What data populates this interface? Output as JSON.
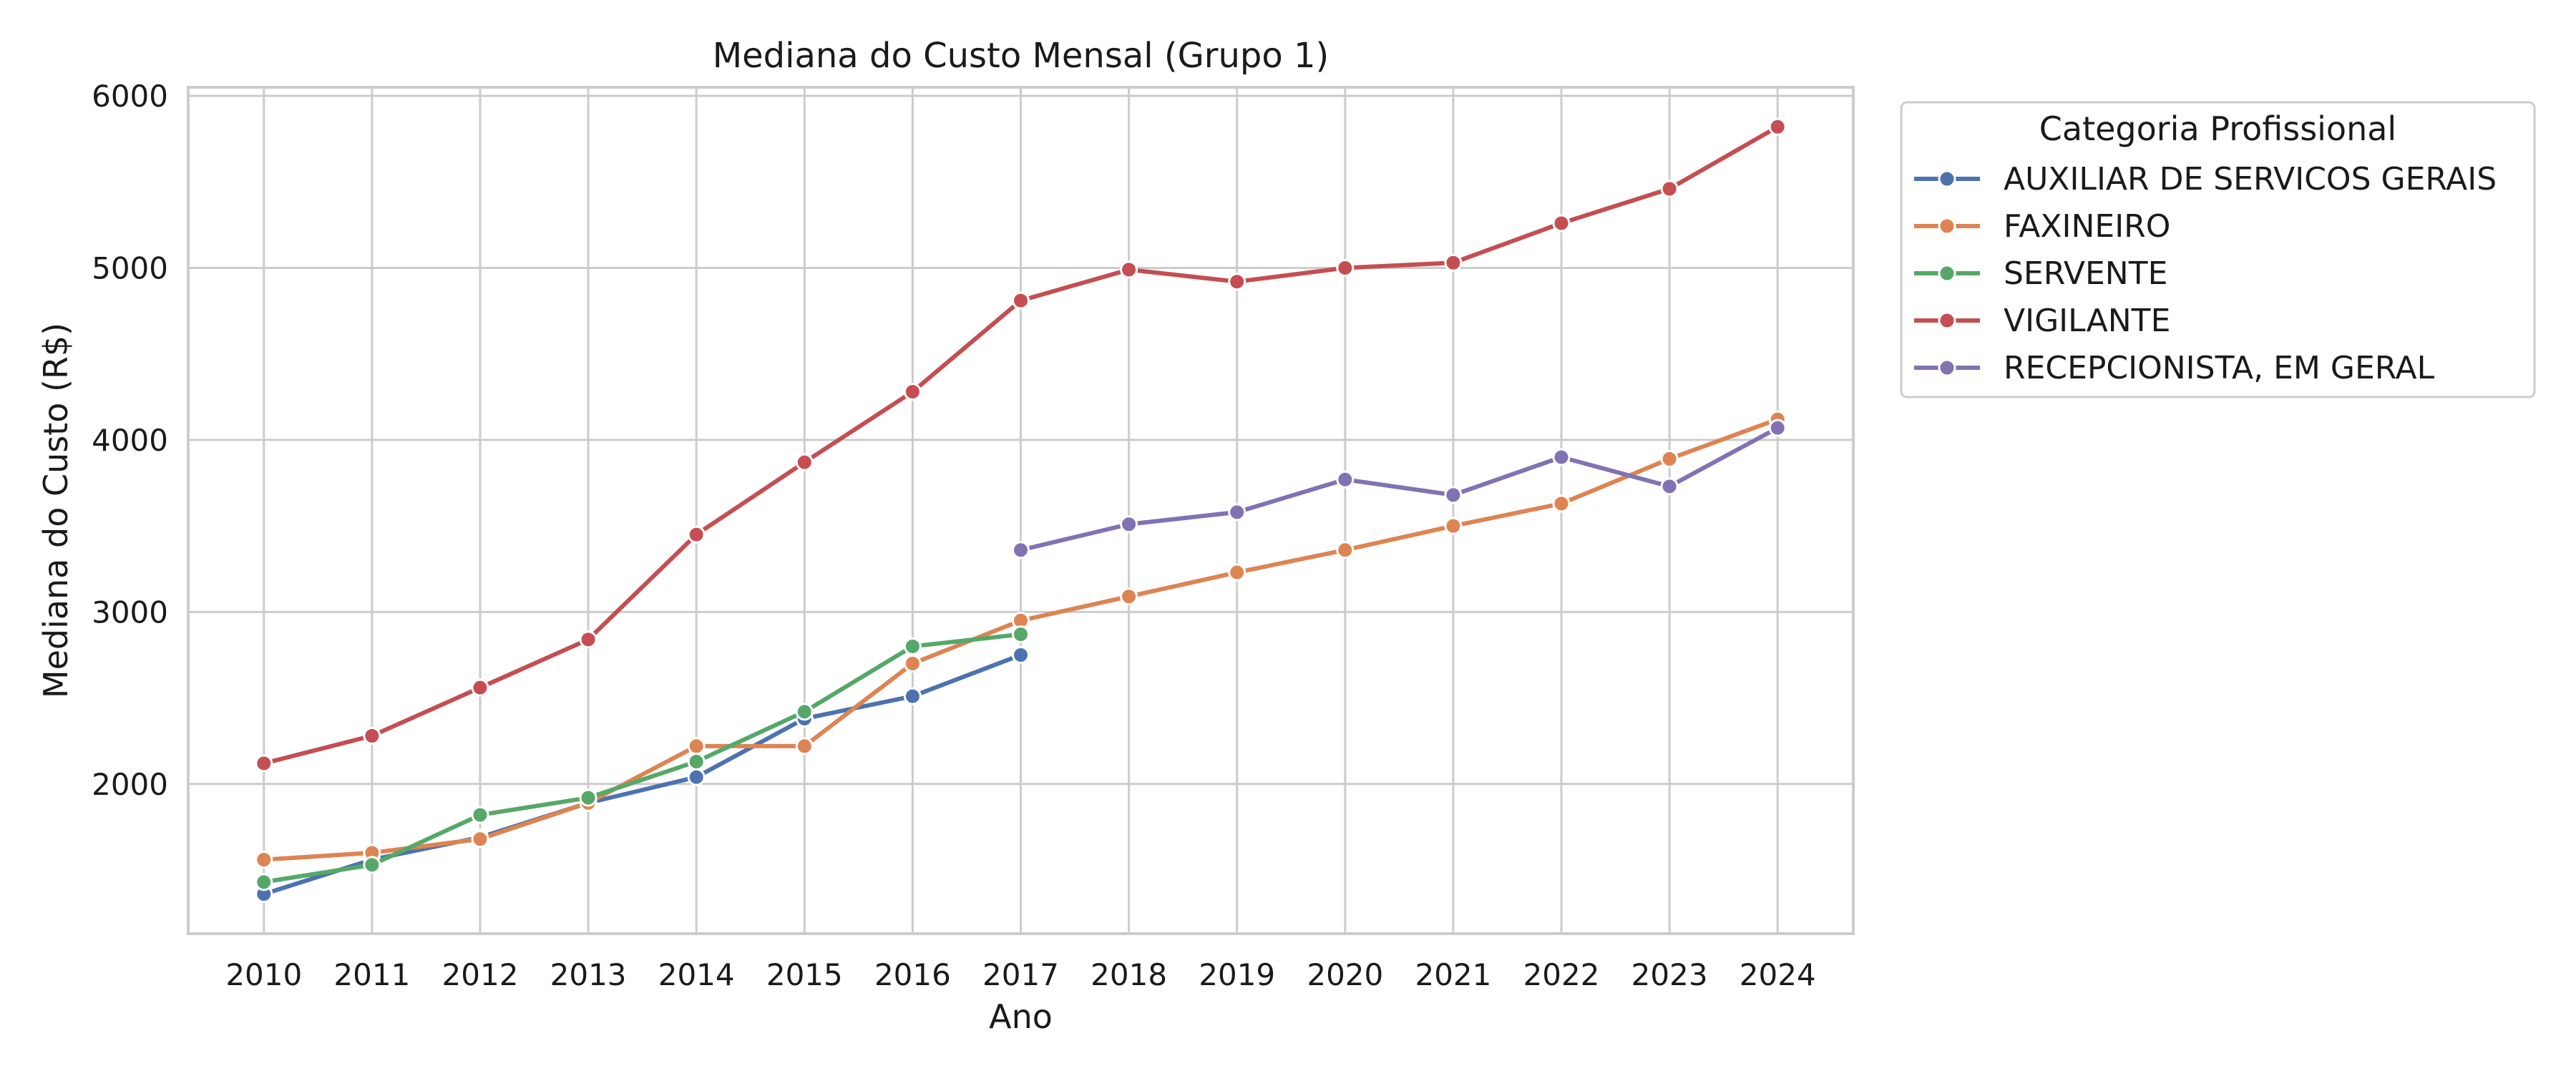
{
  "chart_data": {
    "type": "line",
    "title": "Mediana do Custo Mensal (Grupo 1)",
    "xlabel": "Ano",
    "ylabel": "Mediana do Custo (R$)",
    "x": [
      2010,
      2011,
      2012,
      2013,
      2014,
      2015,
      2016,
      2017,
      2018,
      2019,
      2020,
      2021,
      2022,
      2023,
      2024
    ],
    "xlim": [
      2009.3,
      2024.7
    ],
    "ylim": [
      1130,
      6050
    ],
    "y_ticks": [
      2000,
      3000,
      4000,
      5000,
      6000
    ],
    "grid": true,
    "legend": {
      "title": "Categoria Profissional",
      "placement": "outside-right"
    },
    "series": [
      {
        "name": "AUXILIAR DE SERVICOS GERAIS",
        "color": "#4c72b0",
        "values": [
          1360,
          1560,
          1690,
          1890,
          2040,
          2380,
          2510,
          2750,
          null,
          null,
          null,
          null,
          null,
          null,
          null
        ]
      },
      {
        "name": "FAXINEIRO",
        "color": "#dd8452",
        "values": [
          1560,
          1600,
          1680,
          1890,
          2220,
          2220,
          2700,
          2950,
          3090,
          3230,
          3360,
          3500,
          3630,
          3890,
          4120
        ]
      },
      {
        "name": "SERVENTE",
        "color": "#55a868",
        "values": [
          1430,
          1530,
          1820,
          1920,
          2130,
          2420,
          2800,
          2870,
          null,
          null,
          null,
          null,
          null,
          null,
          null
        ]
      },
      {
        "name": "VIGILANTE",
        "color": "#c44e52",
        "values": [
          2120,
          2280,
          2560,
          2840,
          3450,
          3870,
          4280,
          4810,
          4990,
          4920,
          5000,
          5030,
          5260,
          5460,
          5820
        ]
      },
      {
        "name": "RECEPCIONISTA, EM GERAL",
        "color": "#8172b3",
        "values": [
          null,
          null,
          null,
          null,
          null,
          null,
          null,
          3360,
          3510,
          3580,
          3770,
          3680,
          3900,
          3730,
          4070
        ]
      }
    ]
  }
}
